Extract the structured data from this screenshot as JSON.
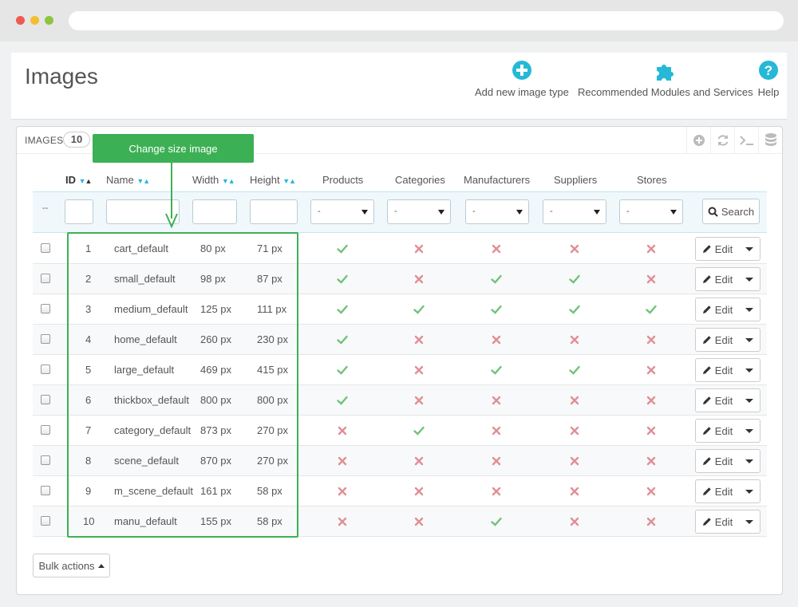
{
  "header": {
    "title": "Images",
    "toolbar": [
      {
        "label": "Add new image type",
        "icon": "plus-circle-icon"
      },
      {
        "label": "Recommended Modules and Services",
        "icon": "puzzle-icon"
      },
      {
        "label": "Help",
        "icon": "help-icon"
      }
    ]
  },
  "panel": {
    "title": "IMAGES",
    "count": "10",
    "tools": [
      "add-icon",
      "refresh-icon",
      "sql-icon",
      "database-icon"
    ]
  },
  "callout": "Change size image",
  "columns": {
    "id": "ID",
    "name": "Name",
    "width": "Width",
    "height": "Height",
    "products": "Products",
    "categories": "Categories",
    "manufacturers": "Manufacturers",
    "suppliers": "Suppliers",
    "stores": "Stores"
  },
  "filters": {
    "dash": "--",
    "select_value": "-",
    "search_label": "Search"
  },
  "rows": [
    {
      "id": "1",
      "name": "cart_default",
      "width": "80 px",
      "height": "71 px",
      "products": true,
      "categories": false,
      "manufacturers": false,
      "suppliers": false,
      "stores": false
    },
    {
      "id": "2",
      "name": "small_default",
      "width": "98 px",
      "height": "87 px",
      "products": true,
      "categories": false,
      "manufacturers": true,
      "suppliers": true,
      "stores": false
    },
    {
      "id": "3",
      "name": "medium_default",
      "width": "125 px",
      "height": "111 px",
      "products": true,
      "categories": true,
      "manufacturers": true,
      "suppliers": true,
      "stores": true
    },
    {
      "id": "4",
      "name": "home_default",
      "width": "260 px",
      "height": "230 px",
      "products": true,
      "categories": false,
      "manufacturers": false,
      "suppliers": false,
      "stores": false
    },
    {
      "id": "5",
      "name": "large_default",
      "width": "469 px",
      "height": "415 px",
      "products": true,
      "categories": false,
      "manufacturers": true,
      "suppliers": true,
      "stores": false
    },
    {
      "id": "6",
      "name": "thickbox_default",
      "width": "800 px",
      "height": "800 px",
      "products": true,
      "categories": false,
      "manufacturers": false,
      "suppliers": false,
      "stores": false
    },
    {
      "id": "7",
      "name": "category_default",
      "width": "873 px",
      "height": "270 px",
      "products": false,
      "categories": true,
      "manufacturers": false,
      "suppliers": false,
      "stores": false
    },
    {
      "id": "8",
      "name": "scene_default",
      "width": "870 px",
      "height": "270 px",
      "products": false,
      "categories": false,
      "manufacturers": false,
      "suppliers": false,
      "stores": false
    },
    {
      "id": "9",
      "name": "m_scene_default",
      "width": "161 px",
      "height": "58 px",
      "products": false,
      "categories": false,
      "manufacturers": false,
      "suppliers": false,
      "stores": false
    },
    {
      "id": "10",
      "name": "manu_default",
      "width": "155 px",
      "height": "58 px",
      "products": false,
      "categories": false,
      "manufacturers": true,
      "suppliers": false,
      "stores": false
    }
  ],
  "row_actions": {
    "edit_label": "Edit"
  },
  "bulk_actions_label": "Bulk actions",
  "colors": {
    "accent": "#25b9d7",
    "check": "#72c279",
    "cross": "#e08f95",
    "annotation": "#3cb054"
  }
}
